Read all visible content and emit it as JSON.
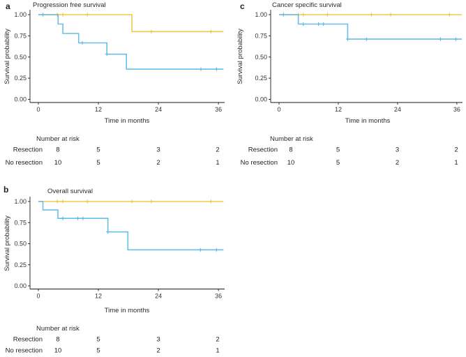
{
  "figure": {
    "description": "Kaplan-Meier survival curves comparing Resection vs No resection",
    "colors": {
      "resection": "#EFC341",
      "no_resection": "#5CB8E8",
      "axis": "#1a1a1a",
      "text": "#222222"
    }
  },
  "chart_data": [
    {
      "type": "line",
      "subtype": "kaplan-meier-step",
      "panel_label": "a",
      "title": "Progression free survival",
      "xlabel": "Time in months",
      "ylabel": "Survival probability",
      "xticks": [
        0,
        12,
        24,
        36
      ],
      "yticks": [
        "1.00",
        "0.75",
        "0.50",
        "0.25",
        "0.00"
      ],
      "xlim": [
        0,
        37
      ],
      "ylim": [
        0,
        1
      ],
      "grid": false,
      "legend_position": "none",
      "series": [
        {
          "name": "Resection",
          "color": "#EFC341",
          "steps": [
            [
              0,
              1.0
            ],
            [
              18.7,
              1.0
            ],
            [
              18.7,
              0.8
            ],
            [
              37,
              0.8
            ]
          ],
          "censors": [
            [
              3.8,
              1.0
            ],
            [
              4.9,
              1.0
            ],
            [
              9.8,
              1.0
            ],
            [
              22.6,
              0.8
            ],
            [
              34.5,
              0.8
            ]
          ]
        },
        {
          "name": "No resection",
          "color": "#5CB8E8",
          "steps": [
            [
              0,
              1.0
            ],
            [
              3.95,
              1.0
            ],
            [
              3.95,
              0.889
            ],
            [
              4.9,
              0.889
            ],
            [
              4.9,
              0.778
            ],
            [
              8.05,
              0.778
            ],
            [
              8.05,
              0.667
            ],
            [
              13.7,
              0.667
            ],
            [
              13.7,
              0.533
            ],
            [
              17.6,
              0.533
            ],
            [
              17.6,
              0.356
            ],
            [
              37,
              0.356
            ]
          ],
          "censors": [
            [
              0.9,
              1.0
            ],
            [
              8.8,
              0.667
            ],
            [
              13.7,
              0.533
            ],
            [
              32.5,
              0.356
            ],
            [
              35.6,
              0.356
            ]
          ]
        }
      ],
      "risk_table": {
        "header": "Number at risk",
        "times": [
          0,
          12,
          24,
          36
        ],
        "rows": [
          {
            "name": "Resection",
            "color": "#F0B93F",
            "values": [
              8,
              5,
              3,
              2
            ]
          },
          {
            "name": "No resection",
            "color": "#54B7E9",
            "values": [
              10,
              5,
              2,
              1
            ]
          }
        ]
      }
    },
    {
      "type": "line",
      "subtype": "kaplan-meier-step",
      "panel_label": "b",
      "title": "Overall survival",
      "xlabel": "Time in months",
      "ylabel": "Survival probability",
      "xticks": [
        0,
        12,
        24,
        36
      ],
      "yticks": [
        "1.00",
        "0.75",
        "0.50",
        "0.25",
        "0.00"
      ],
      "xlim": [
        0,
        37
      ],
      "ylim": [
        0,
        1
      ],
      "grid": false,
      "legend_position": "none",
      "series": [
        {
          "name": "Resection",
          "color": "#EFC341",
          "steps": [
            [
              0,
              1.0
            ],
            [
              37,
              1.0
            ]
          ],
          "censors": [
            [
              3.8,
              1.0
            ],
            [
              4.9,
              1.0
            ],
            [
              9.8,
              1.0
            ],
            [
              18.7,
              1.0
            ],
            [
              22.6,
              1.0
            ],
            [
              34.5,
              1.0
            ]
          ]
        },
        {
          "name": "No resection",
          "color": "#5CB8E8",
          "steps": [
            [
              0,
              1.0
            ],
            [
              0.9,
              1.0
            ],
            [
              0.9,
              0.9
            ],
            [
              3.9,
              0.9
            ],
            [
              3.9,
              0.8
            ],
            [
              13.9,
              0.8
            ],
            [
              13.9,
              0.64
            ],
            [
              17.9,
              0.64
            ],
            [
              17.9,
              0.427
            ],
            [
              37,
              0.427
            ]
          ],
          "censors": [
            [
              4.9,
              0.8
            ],
            [
              7.9,
              0.8
            ],
            [
              8.9,
              0.8
            ],
            [
              13.9,
              0.64
            ],
            [
              32.4,
              0.427
            ],
            [
              35.6,
              0.427
            ]
          ]
        }
      ],
      "risk_table": {
        "header": "Number at risk",
        "times": [
          0,
          12,
          24,
          36
        ],
        "rows": [
          {
            "name": "Resection",
            "color": "#F0B93F",
            "values": [
              8,
              5,
              3,
              2
            ]
          },
          {
            "name": "No resection",
            "color": "#54B7E9",
            "values": [
              10,
              5,
              2,
              1
            ]
          }
        ]
      }
    },
    {
      "type": "line",
      "subtype": "kaplan-meier-step",
      "panel_label": "c",
      "title": "Cancer specific survival",
      "xlabel": "Time in months",
      "ylabel": "Survival probability",
      "xticks": [
        0,
        12,
        24,
        36
      ],
      "yticks": [
        "1.00",
        "0.75",
        "0.50",
        "0.25",
        "0.00"
      ],
      "xlim": [
        0,
        37
      ],
      "ylim": [
        0,
        1
      ],
      "grid": false,
      "legend_position": "none",
      "series": [
        {
          "name": "Resection",
          "color": "#EFC341",
          "steps": [
            [
              0,
              1.0
            ],
            [
              37,
              1.0
            ]
          ],
          "censors": [
            [
              3.9,
              1.0
            ],
            [
              4.9,
              1.0
            ],
            [
              9.8,
              1.0
            ],
            [
              18.7,
              1.0
            ],
            [
              22.6,
              1.0
            ],
            [
              34.5,
              1.0
            ]
          ]
        },
        {
          "name": "No resection",
          "color": "#5CB8E8",
          "steps": [
            [
              0,
              1.0
            ],
            [
              3.9,
              1.0
            ],
            [
              3.9,
              0.889
            ],
            [
              13.9,
              0.889
            ],
            [
              13.9,
              0.711
            ],
            [
              37,
              0.711
            ]
          ],
          "censors": [
            [
              0.9,
              1.0
            ],
            [
              4.9,
              0.889
            ],
            [
              8.0,
              0.889
            ],
            [
              9.0,
              0.889
            ],
            [
              13.9,
              0.711
            ],
            [
              17.7,
              0.711
            ],
            [
              32.7,
              0.711
            ],
            [
              35.8,
              0.711
            ]
          ]
        }
      ],
      "risk_table": {
        "header": "Number at risk",
        "times": [
          0,
          12,
          24,
          36
        ],
        "rows": [
          {
            "name": "Resection",
            "color": "#F0B93F",
            "values": [
              8,
              5,
              3,
              2
            ]
          },
          {
            "name": "No resection",
            "color": "#54B7E9",
            "values": [
              10,
              5,
              2,
              1
            ]
          }
        ]
      }
    }
  ]
}
